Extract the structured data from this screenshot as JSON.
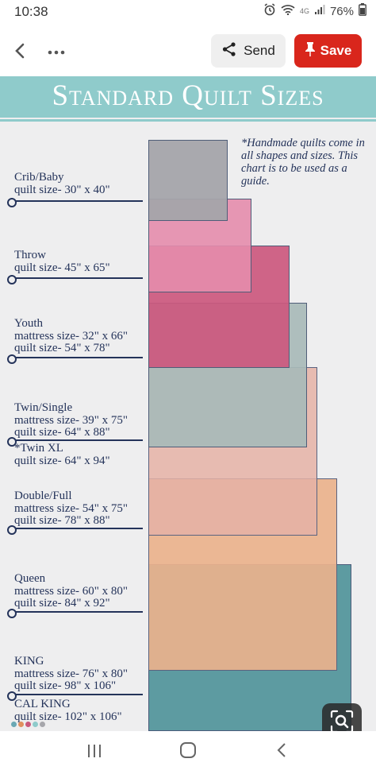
{
  "status_bar": {
    "time": "10:38",
    "network": "4G",
    "battery": "76%"
  },
  "header": {
    "send_label": "Send",
    "save_label": "Save"
  },
  "pin": {
    "title": "Standard Quilt Sizes",
    "note": "*Handmade quilts come in all shapes and sizes. This chart is to be used as a guide.",
    "colors": {
      "band": "#8fcbcb",
      "text": "#24335a",
      "crib": "#a6a6ab",
      "throw": "#e592b0",
      "youth": "#c9587c",
      "twin": "#a9bbb8",
      "twin_xl": "#e6bfb6",
      "double": "#e5aa95",
      "queen": "#e6b38e",
      "king": "#5d9ba1"
    },
    "sizes": [
      {
        "lines": [
          "Crib/Baby",
          "quilt size- 30\" x 40\""
        ]
      },
      {
        "lines": [
          "Throw",
          "quilt size- 45\" x 65\""
        ]
      },
      {
        "lines": [
          "Youth",
          "mattress size- 32\" x 66\"",
          "quilt size- 54\" x 78\""
        ]
      },
      {
        "lines": [
          "Twin/Single",
          "mattress size- 39\" x 75\"",
          "quilt size- 64\" x 88\""
        ]
      },
      {
        "lines": [
          "*Twin XL",
          "quilt size- 64\" x 94\""
        ]
      },
      {
        "lines": [
          "Double/Full",
          "mattress size- 54\" x  75\"",
          "quilt size- 78\" x 88\""
        ]
      },
      {
        "lines": [
          "Queen",
          "mattress size- 60\" x 80\"",
          "quilt size- 84\" x 92\""
        ]
      },
      {
        "lines": [
          "KING",
          "mattress size- 76\" x 80\"",
          "quilt size- 98\" x 106\""
        ]
      },
      {
        "lines": [
          "CAL KING",
          "quilt size- 102\" x 106\""
        ]
      }
    ]
  },
  "icons": {
    "back": "chevron-left-icon",
    "more": "more-horizontal-icon",
    "send": "share-icon",
    "save": "pin-icon",
    "lens": "visual-search-icon",
    "nav_recent": "recent-apps-icon",
    "nav_home": "home-icon",
    "nav_back": "back-icon"
  }
}
